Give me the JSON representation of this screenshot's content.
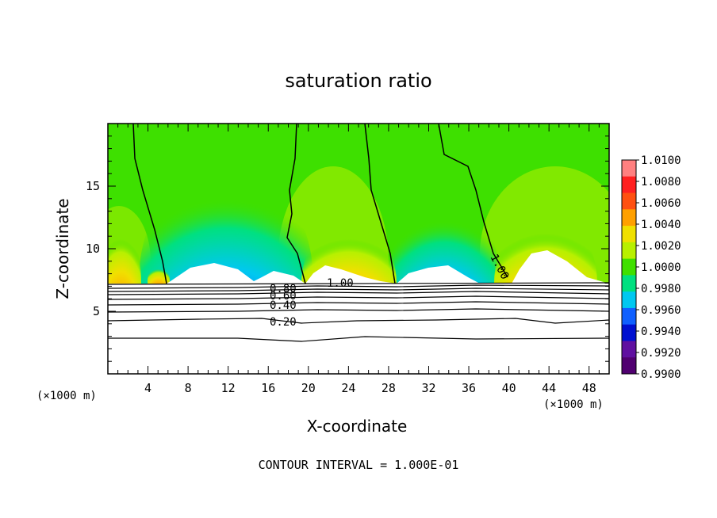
{
  "chart_data": {
    "type": "heatmap",
    "title": "saturation ratio",
    "xlabel": "X-coordinate",
    "ylabel": "Z-coordinate",
    "x_unit": "(×1000 m)",
    "y_unit": "(×1000 m)",
    "xlim": [
      0,
      50
    ],
    "ylim": [
      0,
      20
    ],
    "x_ticks": [
      "4",
      "8",
      "12",
      "16",
      "20",
      "24",
      "28",
      "32",
      "36",
      "40",
      "44",
      "48"
    ],
    "y_ticks": [
      "5",
      "10",
      "15"
    ],
    "contour_note": "CONTOUR INTERVAL = 1.000E-01",
    "contour_labels": [
      "0.20",
      "0.40",
      "0.60",
      "0.80",
      "1.00",
      "1.00"
    ],
    "colorbar": {
      "labels": [
        "1.0100",
        "1.0080",
        "1.0060",
        "1.0040",
        "1.0020",
        "1.0000",
        "0.9980",
        "0.9960",
        "0.9940",
        "0.9920",
        "0.9900"
      ],
      "colors": [
        "#ff8080",
        "#ff2020",
        "#ff5010",
        "#ffa000",
        "#f0e000",
        "#b8f000",
        "#40e000",
        "#00e080",
        "#00c8f0",
        "#1060ff",
        "#0010d0",
        "#6010a0",
        "#500070"
      ]
    },
    "cloud_base_z": 7.2
  }
}
